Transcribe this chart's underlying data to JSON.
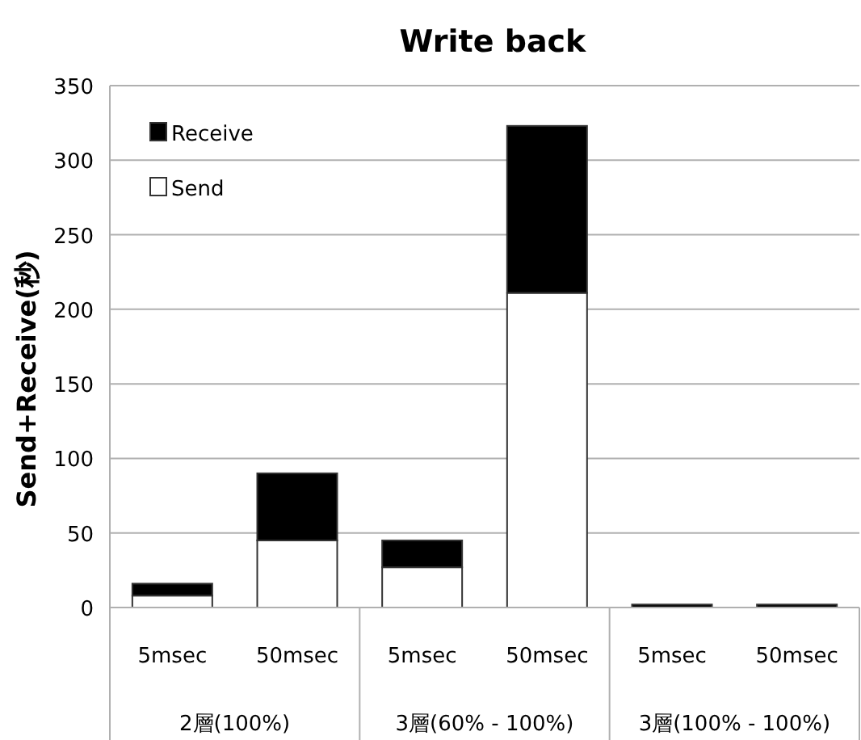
{
  "chart_data": {
    "type": "bar",
    "title": "Write back",
    "ylabel": "Send+Receive(秒)",
    "categories": [
      "5msec",
      "50msec",
      "5msec",
      "50msec",
      "5msec",
      "50msec"
    ],
    "series": [
      {
        "name": "Send",
        "color": "#ffffff",
        "values": [
          8,
          45,
          27,
          211,
          null,
          null
        ]
      },
      {
        "name": "Receive",
        "color": "#000000",
        "values": [
          8,
          45,
          18,
          112,
          2,
          2
        ]
      }
    ],
    "stacked": true,
    "ylim": [
      0,
      350
    ],
    "yticks": [
      0,
      50,
      100,
      150,
      200,
      250,
      300,
      350
    ],
    "grid": "y",
    "legend": "top left",
    "annotations": [
      "2層(100%)",
      "3層(60% - 100%)",
      "3層(100% - 100%)"
    ]
  }
}
